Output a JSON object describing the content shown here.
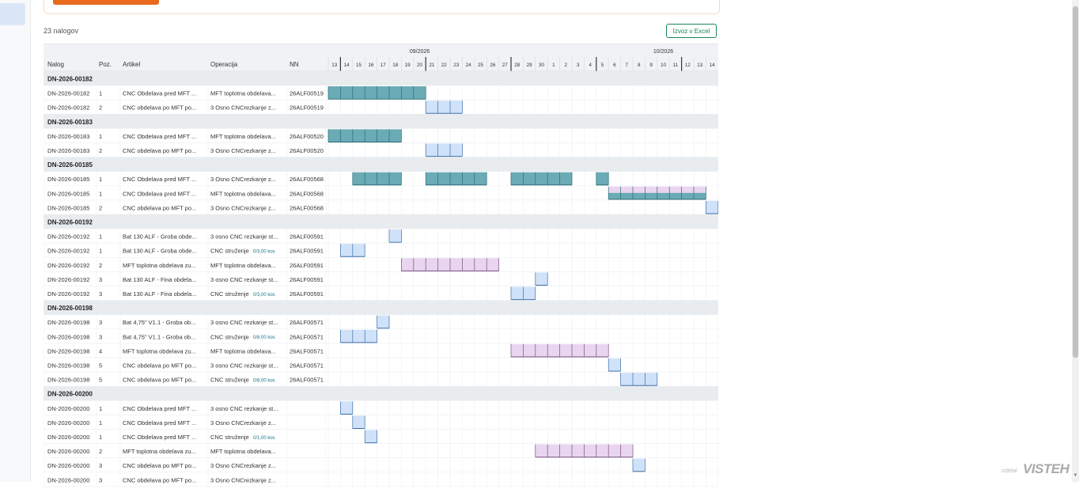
{
  "count_label": "23 nalogov",
  "export_label": "Izvoz v Excel",
  "logo": {
    "prefix": "izdelal",
    "name": "VISTEH"
  },
  "colors": {
    "teal": "#6aabb5",
    "light_blue": "#cfe2f9",
    "lavender": "#e9d5ef",
    "orange": "#e86a1f",
    "green": "#198754"
  },
  "columns": [
    "Nalog",
    "Poz.",
    "Artikel",
    "Operacija",
    "NN"
  ],
  "months": [
    {
      "label": "09/2026",
      "at": "20"
    },
    {
      "label": "10/2026",
      "at": "10"
    }
  ],
  "days": [
    "13",
    "14",
    "15",
    "16",
    "17",
    "18",
    "19",
    "20",
    "21",
    "22",
    "23",
    "24",
    "25",
    "26",
    "27",
    "28",
    "29",
    "30",
    "1",
    "2",
    "3",
    "4",
    "5",
    "6",
    "7",
    "8",
    "9",
    "10",
    "11",
    "12",
    "13",
    "14"
  ],
  "week_starts": [
    "14",
    "21",
    "28",
    "5",
    "12"
  ],
  "rows": [
    {
      "type": "group",
      "label": "DN-2026-00182"
    },
    {
      "nalog": "DN-2026-00182",
      "poz": "1",
      "artikel": "CNC Obdelava pred MFT ...",
      "op": "MFT toplotna obdelava...",
      "nn": "26ALF00519",
      "bars": [
        {
          "start": 0,
          "len": 8,
          "style": "teal"
        }
      ]
    },
    {
      "nalog": "DN-2026-00182",
      "poz": "2",
      "artikel": "CNC obdelava po MFT po...",
      "op": "3 Osno CNCrezkanje z...",
      "nn": "26ALF00519",
      "bars": [
        {
          "start": 8,
          "len": 3,
          "style": "light_blue"
        }
      ]
    },
    {
      "type": "group",
      "label": "DN-2026-00183"
    },
    {
      "nalog": "DN-2026-00183",
      "poz": "1",
      "artikel": "CNC Obdelava pred MFT ...",
      "op": "MFT toplotna obdelava...",
      "nn": "26ALF00520",
      "bars": [
        {
          "start": 0,
          "len": 6,
          "style": "teal"
        }
      ]
    },
    {
      "nalog": "DN-2026-00183",
      "poz": "2",
      "artikel": "CNC obdelava po MFT po...",
      "op": "3 Osno CNCrezkanje z...",
      "nn": "26ALF00520",
      "bars": [
        {
          "start": 8,
          "len": 3,
          "style": "light_blue"
        }
      ]
    },
    {
      "type": "group",
      "label": "DN-2026-00185"
    },
    {
      "nalog": "DN-2026-00185",
      "poz": "1",
      "artikel": "CNC Obdelava pred MFT ...",
      "op": "3 Osno CNCrezkanje z...",
      "nn": "26ALF00568",
      "bars": [
        {
          "start": 2,
          "len": 4,
          "style": "teal"
        },
        {
          "start": 8,
          "len": 5,
          "style": "teal"
        },
        {
          "start": 15,
          "len": 5,
          "style": "teal"
        },
        {
          "start": 22,
          "len": 1,
          "style": "teal"
        }
      ]
    },
    {
      "nalog": "DN-2026-00185",
      "poz": "1",
      "artikel": "CNC Obdelava pred MFT ...",
      "op": "MFT toplotna obdelava...",
      "nn": "26ALF00568",
      "bars": [
        {
          "start": 23,
          "len": 8,
          "style": "lavender_teal"
        }
      ]
    },
    {
      "nalog": "DN-2026-00185",
      "poz": "2",
      "artikel": "CNC obdelava po MFT po...",
      "op": "3 Osno CNCrezkanje z...",
      "nn": "26ALF00568",
      "bars": [
        {
          "start": 31,
          "len": 1,
          "style": "light_blue"
        }
      ]
    },
    {
      "type": "group",
      "label": "DN-2026-00192"
    },
    {
      "nalog": "DN-2026-00192",
      "poz": "1",
      "artikel": "Bat 130 ALF - Groba obde...",
      "op": "3 osno CNC rezkanje st...",
      "nn": "26ALF00591",
      "bars": [
        {
          "start": 5,
          "len": 1,
          "style": "light_blue"
        }
      ]
    },
    {
      "nalog": "DN-2026-00192",
      "poz": "1",
      "artikel": "Bat 130 ALF - Groba obde...",
      "op": "CNC struženje",
      "kos": "0/3,00 kos",
      "nn": "26ALF00591",
      "bars": [
        {
          "start": 1,
          "len": 2,
          "style": "light_blue"
        }
      ]
    },
    {
      "nalog": "DN-2026-00192",
      "poz": "2",
      "artikel": "MFT toplotna obdelava zu...",
      "op": "MFT toplotna obdelava...",
      "nn": "26ALF00591",
      "bars": [
        {
          "start": 6,
          "len": 8,
          "style": "lavender"
        }
      ]
    },
    {
      "nalog": "DN-2026-00192",
      "poz": "3",
      "artikel": "Bat 130 ALF - Fina obdela...",
      "op": "3 osno CNC rezkanje st...",
      "nn": "26ALF00591",
      "bars": [
        {
          "start": 17,
          "len": 1,
          "style": "light_blue"
        }
      ]
    },
    {
      "nalog": "DN-2026-00192",
      "poz": "3",
      "artikel": "Bat 130 ALF - Fina obdela...",
      "op": "CNC struženje",
      "kos": "0/3,00 kos",
      "nn": "26ALF00591",
      "bars": [
        {
          "start": 15,
          "len": 2,
          "style": "light_blue"
        }
      ]
    },
    {
      "type": "group",
      "label": "DN-2026-00198"
    },
    {
      "nalog": "DN-2026-00198",
      "poz": "3",
      "artikel": "Bat 4,75\" V1.1 - Groba ob...",
      "op": "3 osno CNC rezkanje st...",
      "nn": "26ALF00571",
      "bars": [
        {
          "start": 4,
          "len": 1,
          "style": "light_blue"
        }
      ]
    },
    {
      "nalog": "DN-2026-00198",
      "poz": "3",
      "artikel": "Bat 4,75\" V1.1 - Groba ob...",
      "op": "CNC struženje",
      "kos": "0/8,00 kos",
      "nn": "26ALF00571",
      "bars": [
        {
          "start": 1,
          "len": 3,
          "style": "light_blue"
        }
      ]
    },
    {
      "nalog": "DN-2026-00198",
      "poz": "4",
      "artikel": "MFT toplotna obdelava zu...",
      "op": "MFT toplotna obdelava...",
      "nn": "26ALF00571",
      "bars": [
        {
          "start": 15,
          "len": 8,
          "style": "lavender"
        }
      ]
    },
    {
      "nalog": "DN-2026-00198",
      "poz": "5",
      "artikel": "CNC obdelava po MFT po...",
      "op": "3 osno CNC rezkanje st...",
      "nn": "26ALF00571",
      "bars": [
        {
          "start": 23,
          "len": 1,
          "style": "light_blue"
        }
      ]
    },
    {
      "nalog": "DN-2026-00198",
      "poz": "5",
      "artikel": "CNC obdelava po MFT po...",
      "op": "CNC struženje",
      "kos": "0/8,00 kos",
      "nn": "26ALF00571",
      "bars": [
        {
          "start": 24,
          "len": 3,
          "style": "light_blue"
        }
      ]
    },
    {
      "type": "group",
      "label": "DN-2026-00200"
    },
    {
      "nalog": "DN-2026-00200",
      "poz": "1",
      "artikel": "CNC Obdelava pred MFT ...",
      "op": "3 osno CNC rezkanje st...",
      "nn": "",
      "bars": [
        {
          "start": 1,
          "len": 1,
          "style": "light_blue"
        }
      ]
    },
    {
      "nalog": "DN-2026-00200",
      "poz": "1",
      "artikel": "CNC Obdelava pred MFT ...",
      "op": "3 Osno CNCrezkanje z...",
      "nn": "",
      "bars": [
        {
          "start": 2,
          "len": 1,
          "style": "light_blue"
        }
      ]
    },
    {
      "nalog": "DN-2026-00200",
      "poz": "1",
      "artikel": "CNC Obdelava pred MFT ...",
      "op": "CNC struženje",
      "kos": "0/1,00 kos",
      "nn": "",
      "bars": [
        {
          "start": 3,
          "len": 1,
          "style": "light_blue"
        }
      ]
    },
    {
      "nalog": "DN-2026-00200",
      "poz": "2",
      "artikel": "MFT toplotna obdelava zu...",
      "op": "MFT toplotna obdelava...",
      "nn": "",
      "bars": [
        {
          "start": 17,
          "len": 8,
          "style": "lavender"
        }
      ]
    },
    {
      "nalog": "DN-2026-00200",
      "poz": "3",
      "artikel": "CNC obdelava po MFT po...",
      "op": "3 Osno CNCrezkanje z...",
      "nn": "",
      "bars": [
        {
          "start": 25,
          "len": 1,
          "style": "light_blue"
        }
      ]
    },
    {
      "nalog": "DN-2026-00200",
      "poz": "3",
      "artikel": "CNC obdelava po MFT po...",
      "op": "3 Osno CNCrezkanje z...",
      "nn": "",
      "bars": []
    }
  ]
}
